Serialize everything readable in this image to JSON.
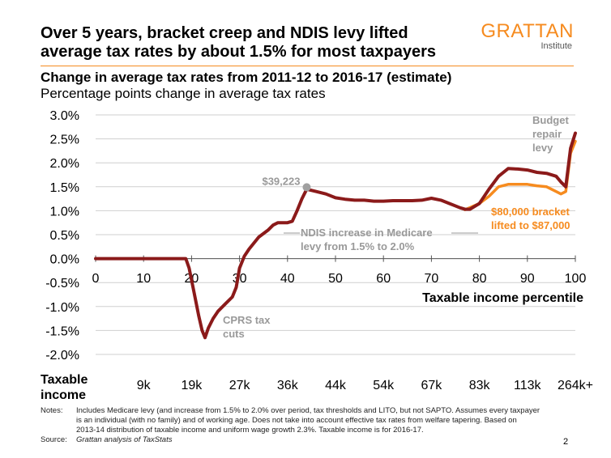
{
  "header": {
    "title_line1": "Over 5 years, bracket creep and NDIS levy lifted",
    "title_line2": "average tax rates by about 1.5% for most taxpayers",
    "logo_word": "GRATTAN",
    "logo_sub": "Institute"
  },
  "chart_data": {
    "type": "line",
    "title": "Change in average tax rates from 2011-12 to 2016-17 (estimate)",
    "subtitle": "Percentage points change in average tax rates",
    "xlabel": "Taxable income percentile",
    "xlim": [
      0,
      100
    ],
    "ylim": [
      -2.0,
      3.0
    ],
    "x_ticks": [
      0,
      10,
      20,
      30,
      40,
      50,
      60,
      70,
      80,
      90,
      100
    ],
    "y_ticks": [
      "3.0%",
      "2.5%",
      "2.0%",
      "1.5%",
      "1.0%",
      "0.5%",
      "0.0%",
      "-0.5%",
      "-1.0%",
      "-1.5%",
      "-2.0%"
    ],
    "y_tick_values": [
      3.0,
      2.5,
      2.0,
      1.5,
      1.0,
      0.5,
      0.0,
      -0.5,
      -1.0,
      -1.5,
      -2.0
    ],
    "income_row_label": "Taxable income",
    "income_labels": [
      "9k",
      "19k",
      "27k",
      "36k",
      "44k",
      "54k",
      "67k",
      "83k",
      "113k",
      "264k+"
    ],
    "income_label_percentiles": [
      10,
      20,
      30,
      40,
      50,
      60,
      70,
      80,
      90,
      100
    ],
    "grid": true,
    "colors": {
      "main": "#8b1a1a",
      "alt": "#f68b1f",
      "annotation": "#999999"
    },
    "series": [
      {
        "key": "alt",
        "x": [
          77,
          80,
          82,
          84,
          86,
          88,
          90,
          92,
          94,
          96,
          97,
          98,
          99,
          100
        ],
        "y": [
          1.02,
          1.15,
          1.3,
          1.5,
          1.55,
          1.55,
          1.55,
          1.52,
          1.5,
          1.4,
          1.35,
          1.4,
          2.2,
          2.45
        ]
      },
      {
        "key": "main",
        "x": [
          0,
          18.8,
          19.5,
          20.5,
          21.5,
          22.2,
          22.8,
          23.5,
          24.5,
          25.5,
          27,
          28.5,
          29.3,
          30,
          31,
          32,
          34,
          36,
          37,
          38,
          39,
          40,
          41,
          42,
          43,
          44,
          46,
          48,
          50,
          52,
          54,
          56,
          58,
          60,
          62,
          64,
          66,
          68,
          70,
          72,
          74,
          76,
          77,
          78,
          80,
          82,
          84,
          86,
          88,
          90,
          92,
          94,
          96,
          97,
          98,
          99,
          100
        ],
        "y": [
          0,
          0,
          -0.2,
          -0.7,
          -1.2,
          -1.5,
          -1.65,
          -1.45,
          -1.25,
          -1.1,
          -0.95,
          -0.8,
          -0.6,
          -0.2,
          0.05,
          0.2,
          0.45,
          0.6,
          0.7,
          0.75,
          0.75,
          0.75,
          0.78,
          1.0,
          1.25,
          1.45,
          1.4,
          1.35,
          1.27,
          1.24,
          1.22,
          1.22,
          1.2,
          1.2,
          1.21,
          1.21,
          1.21,
          1.22,
          1.26,
          1.22,
          1.14,
          1.06,
          1.03,
          1.03,
          1.15,
          1.45,
          1.72,
          1.88,
          1.87,
          1.85,
          1.8,
          1.78,
          1.72,
          1.6,
          1.5,
          2.3,
          2.62
        ]
      }
    ],
    "annotations": {
      "point_label": "$39,223",
      "point_x": 44,
      "point_y": 1.49,
      "cprs_line1": "CPRS tax",
      "cprs_line2": "cuts",
      "ndis_line1": "NDIS increase in Medicare",
      "ndis_line2": "levy from 1.5% to 2.0%",
      "budget_line1": "Budget",
      "budget_line2": "repair",
      "budget_line3": "levy",
      "bracket_line1": "$80,000 bracket",
      "bracket_line2": "lifted to $87,000"
    }
  },
  "notes": {
    "notes_label": "Notes:",
    "notes_line1": "Includes Medicare levy (and increase from 1.5% to 2.0% over period, tax thresholds and LITO, but not SAPTO. Assumes every taxpayer",
    "notes_line2": "is an individual (with no family) and of working age. Does not take into account effective tax rates from welfare tapering. Based on",
    "notes_line3": "2013-14 distribution of taxable income and uniform wage growth 2.3%. Taxable income is for 2016-17.",
    "source_label": "Source:",
    "source_text": "Grattan analysis of TaxStats"
  },
  "page_number": "2"
}
